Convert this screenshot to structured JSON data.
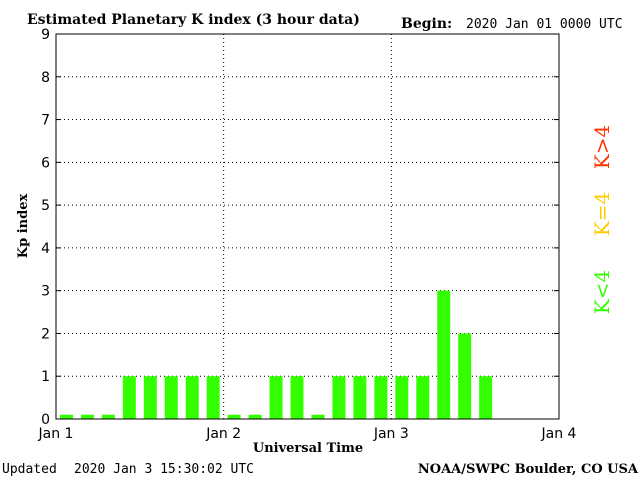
{
  "header": {
    "title": "Estimated Planetary K index (3 hour data)",
    "begin_label": "Begin:",
    "begin_value": "2020 Jan 01 0000 UTC"
  },
  "footer": {
    "updated_label": "Updated",
    "updated_value": "2020 Jan  3 15:30:02 UTC",
    "source": "NOAA/SWPC Boulder, CO USA"
  },
  "legend": [
    {
      "label": "K<4",
      "color": "#33ff00"
    },
    {
      "label": "K=4",
      "color": "#ffcc00"
    },
    {
      "label": "K>4",
      "color": "#ff3300"
    }
  ],
  "colors": {
    "below": "#33ff00",
    "equal": "#ffcc00",
    "above": "#ff3300"
  },
  "chart_data": {
    "type": "bar",
    "xlabel": "Universal Time",
    "ylabel": "Kp index",
    "ylim": [
      0,
      9
    ],
    "yticks": [
      0,
      1,
      2,
      3,
      4,
      5,
      6,
      7,
      8,
      9
    ],
    "xlim": [
      "2020-01-01 00:00",
      "2020-01-04 00:00"
    ],
    "xticks": [
      "Jan 1",
      "Jan 2",
      "Jan 3",
      "Jan 4"
    ],
    "grid": true,
    "x": [
      "2020-01-01 00:00",
      "2020-01-01 03:00",
      "2020-01-01 06:00",
      "2020-01-01 09:00",
      "2020-01-01 12:00",
      "2020-01-01 15:00",
      "2020-01-01 18:00",
      "2020-01-01 21:00",
      "2020-01-02 00:00",
      "2020-01-02 03:00",
      "2020-01-02 06:00",
      "2020-01-02 09:00",
      "2020-01-02 12:00",
      "2020-01-02 15:00",
      "2020-01-02 18:00",
      "2020-01-02 21:00",
      "2020-01-03 00:00",
      "2020-01-03 03:00",
      "2020-01-03 06:00",
      "2020-01-03 09:00",
      "2020-01-03 12:00"
    ],
    "values": [
      0,
      0,
      0,
      1,
      1,
      1,
      1,
      1,
      0,
      0,
      1,
      1,
      0,
      1,
      1,
      1,
      1,
      1,
      3,
      2,
      1
    ]
  }
}
